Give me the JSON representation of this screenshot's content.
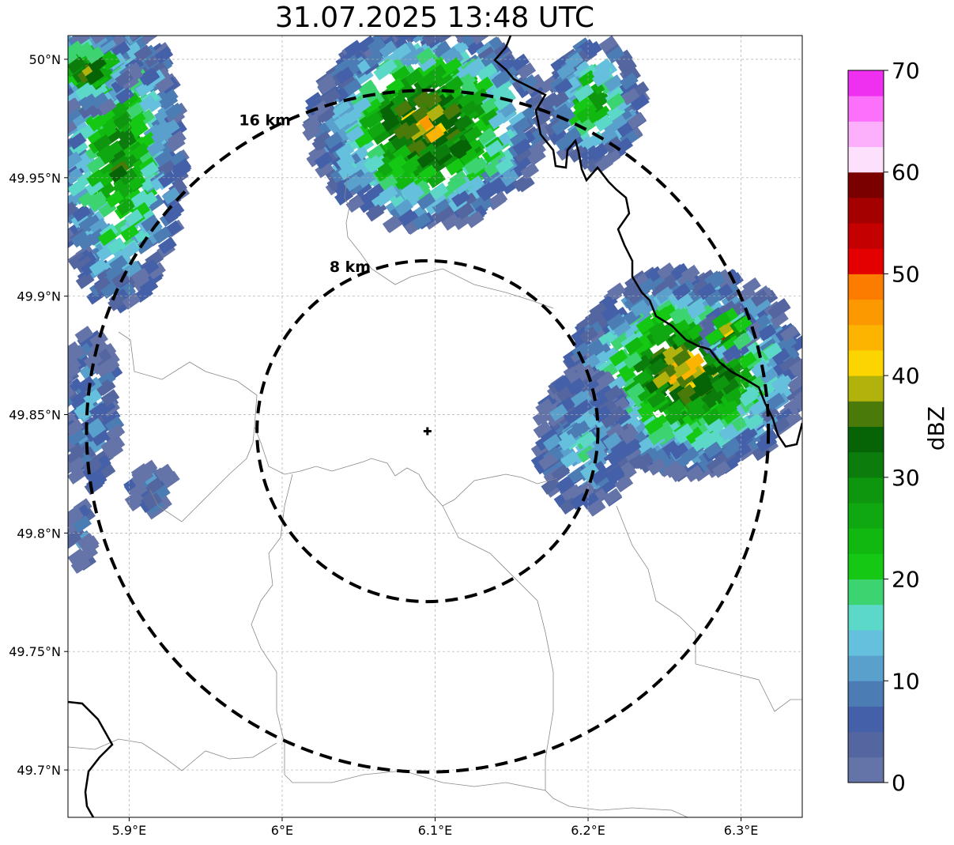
{
  "title": "31.07.2025 13:48 UTC",
  "map": {
    "lon_range": [
      5.86,
      6.34
    ],
    "lat_range": [
      49.68,
      50.01
    ],
    "x_ticks": [
      {
        "value": 5.9,
        "label": "5.9°E"
      },
      {
        "value": 6.0,
        "label": "6°E"
      },
      {
        "value": 6.1,
        "label": "6.1°E"
      },
      {
        "value": 6.2,
        "label": "6.2°E"
      },
      {
        "value": 6.3,
        "label": "6.3°E"
      }
    ],
    "y_ticks": [
      {
        "value": 50.0,
        "label": "50°N"
      },
      {
        "value": 49.95,
        "label": "49.95°N"
      },
      {
        "value": 49.9,
        "label": "49.9°N"
      },
      {
        "value": 49.85,
        "label": "49.85°N"
      },
      {
        "value": 49.8,
        "label": "49.8°N"
      },
      {
        "value": 49.75,
        "label": "49.75°N"
      },
      {
        "value": 49.7,
        "label": "49.7°N"
      }
    ],
    "grid": true,
    "radar_site": {
      "lon": 6.095,
      "lat": 49.843,
      "marker": "plus-marker"
    },
    "rings": [
      {
        "label": "8 km",
        "radius_km": 8
      },
      {
        "label": "16 km",
        "radius_km": 16
      }
    ]
  },
  "colorbar": {
    "label": "dBZ",
    "ticks": [
      "0",
      "10",
      "20",
      "30",
      "40",
      "50",
      "60",
      "70"
    ],
    "min": 0,
    "max": 70,
    "step": 2.5,
    "colors": [
      "#6474a8",
      "#5466a0",
      "#4460a8",
      "#4c7cb4",
      "#5aa0cc",
      "#64c0dc",
      "#5cd8c8",
      "#3cd470",
      "#14c814",
      "#10b810",
      "#10a810",
      "#0e960e",
      "#0c7c0c",
      "#066406",
      "#4a7a0a",
      "#b2b20c",
      "#fcd400",
      "#fcb400",
      "#fc9800",
      "#fc7c00",
      "#e40000",
      "#c40000",
      "#a40000",
      "#7a0000",
      "#fce0fc",
      "#fcb0fc",
      "#fc70fc",
      "#f030f0"
    ]
  }
}
